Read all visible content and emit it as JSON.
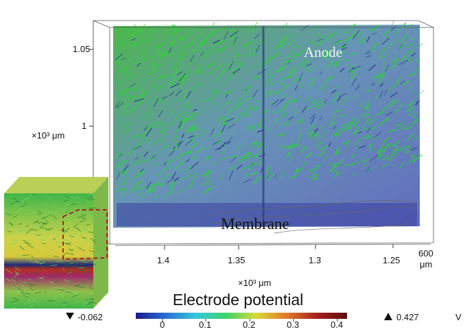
{
  "labels": {
    "anode": "Anode",
    "membrane": "Membrane"
  },
  "axes": {
    "vertical": {
      "unit": "×10³ μm",
      "ticks": [
        "1.05",
        "1"
      ]
    },
    "horizontal": {
      "unit": "×10³ μm",
      "ticks": [
        "1.4",
        "1.35",
        "1.3",
        "1.25"
      ]
    },
    "depth": {
      "value": "600",
      "unit": "μm"
    }
  },
  "colorbar": {
    "title": "Electrode potential",
    "ticks": [
      "0",
      "0.1",
      "0.2",
      "0.3",
      "0.4"
    ],
    "min_label": "-0.062",
    "max_label": "0.427",
    "unit": "V",
    "min_marker_icon": "down-triangle-icon",
    "max_marker_icon": "up-triangle-icon",
    "colors": [
      "#1a1a8c",
      "#2a6fd6",
      "#35c8d8",
      "#3fd46a",
      "#d8d83a",
      "#e07a2a",
      "#a81f1f",
      "#5a0f10"
    ]
  },
  "colors": {
    "streamline": "#22dd22",
    "block": "#5a63b8",
    "inset_border": "#b02020"
  }
}
